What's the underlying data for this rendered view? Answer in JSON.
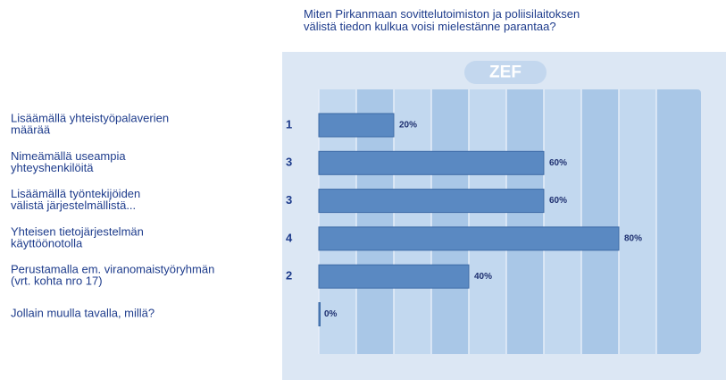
{
  "logo": "ZEF",
  "chart_data": {
    "type": "bar",
    "orientation": "horizontal",
    "title": "Miten Pirkanmaan sovittelutoimiston ja poliisilaitoksen\nvälistä tiedon kulkua voisi mielestänne parantaa?",
    "categories": [
      "Lisäämällä yhteistyöpalaverien\nmäärää",
      "Nimeämällä useampia\nyhteyshenkilöitä",
      "Lisäämällä työntekijöiden\nvälistä järjestelmällistä...",
      "Yhteisen tietojärjestelmän\nkäyttöönotolla",
      "Perustamalla em. viranomaistyöryhmän\n(vrt. kohta nro 17)",
      "Jollain muulla tavalla, millä?"
    ],
    "counts": [
      1,
      3,
      3,
      4,
      2,
      null
    ],
    "values": [
      20,
      60,
      60,
      80,
      40,
      0
    ],
    "value_labels": [
      "20%",
      "60%",
      "60%",
      "80%",
      "40%",
      "0%"
    ],
    "color": "#5a89c2",
    "xlim": [
      0,
      100
    ],
    "xticks": [
      0,
      10,
      20,
      30,
      40,
      50,
      60,
      70,
      80,
      90,
      100
    ],
    "grid": true
  }
}
